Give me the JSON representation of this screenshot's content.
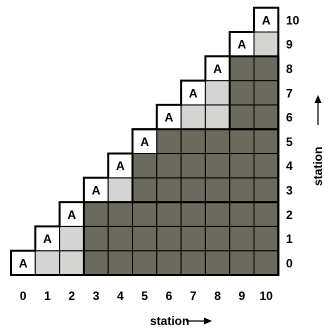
{
  "grid": {
    "size": 11,
    "cell_marker": "A",
    "colors": {
      "dark": "#6b6a5c",
      "light": "#d4d4d2",
      "white": "#ffffff",
      "line": "#000000"
    },
    "regions_dark": [
      {
        "x_from": 3,
        "x_to": 10,
        "y_from": 0,
        "y_to": 2
      },
      {
        "x_from": 5,
        "x_to": 10,
        "y_from": 3,
        "y_to": 5
      },
      {
        "x_from": 9,
        "x_to": 10,
        "y_from": 6,
        "y_to": 8
      }
    ],
    "note_rule": "Cells with y <= x are filled; y == x is white with marker; others light or dark."
  },
  "x_axis": {
    "ticks": [
      "0",
      "1",
      "2",
      "3",
      "4",
      "5",
      "6",
      "7",
      "8",
      "9",
      "10"
    ],
    "label": "station",
    "arrow": "→"
  },
  "y_axis": {
    "ticks": [
      "0",
      "1",
      "2",
      "3",
      "4",
      "5",
      "6",
      "7",
      "8",
      "9",
      "10"
    ],
    "label": "station",
    "arrow": "→"
  }
}
